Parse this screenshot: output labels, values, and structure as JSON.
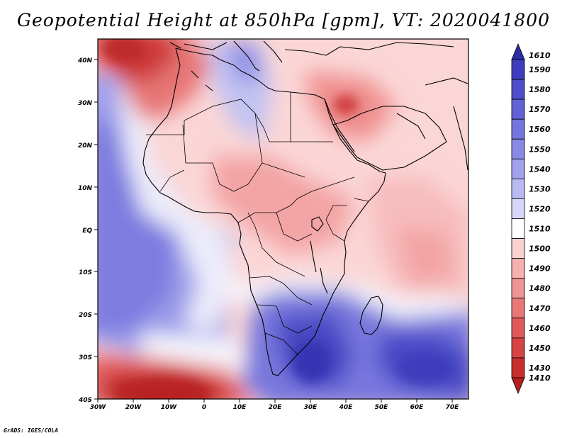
{
  "title": "Geopotential Height at 850hPa [gpm], VT: 2020041800",
  "credit": "GrADS: IGES/COLA",
  "lat_labels": [
    "40N",
    "30N",
    "20N",
    "10N",
    "EQ",
    "10S",
    "20S",
    "30S",
    "40S"
  ],
  "lon_labels": [
    "30W",
    "20W",
    "10W",
    "0",
    "10E",
    "20E",
    "30E",
    "40E",
    "50E",
    "60E",
    "70E"
  ],
  "colorbar": {
    "levels": [
      "1610",
      "1590",
      "1580",
      "1570",
      "1560",
      "1550",
      "1540",
      "1530",
      "1520",
      "1510",
      "1500",
      "1490",
      "1480",
      "1470",
      "1460",
      "1450",
      "1430",
      "1410"
    ],
    "colors": [
      "#2b2ba6",
      "#3d3dbd",
      "#4e4ecb",
      "#6262d6",
      "#7575de",
      "#8a8ae5",
      "#a0a0ec",
      "#babaf2",
      "#d6d6f8",
      "#ffffff",
      "#fbd0d0",
      "#f6b0b0",
      "#ef9494",
      "#e87878",
      "#e05a5a",
      "#d64444",
      "#c82e2e",
      "#b51f1f"
    ]
  }
}
